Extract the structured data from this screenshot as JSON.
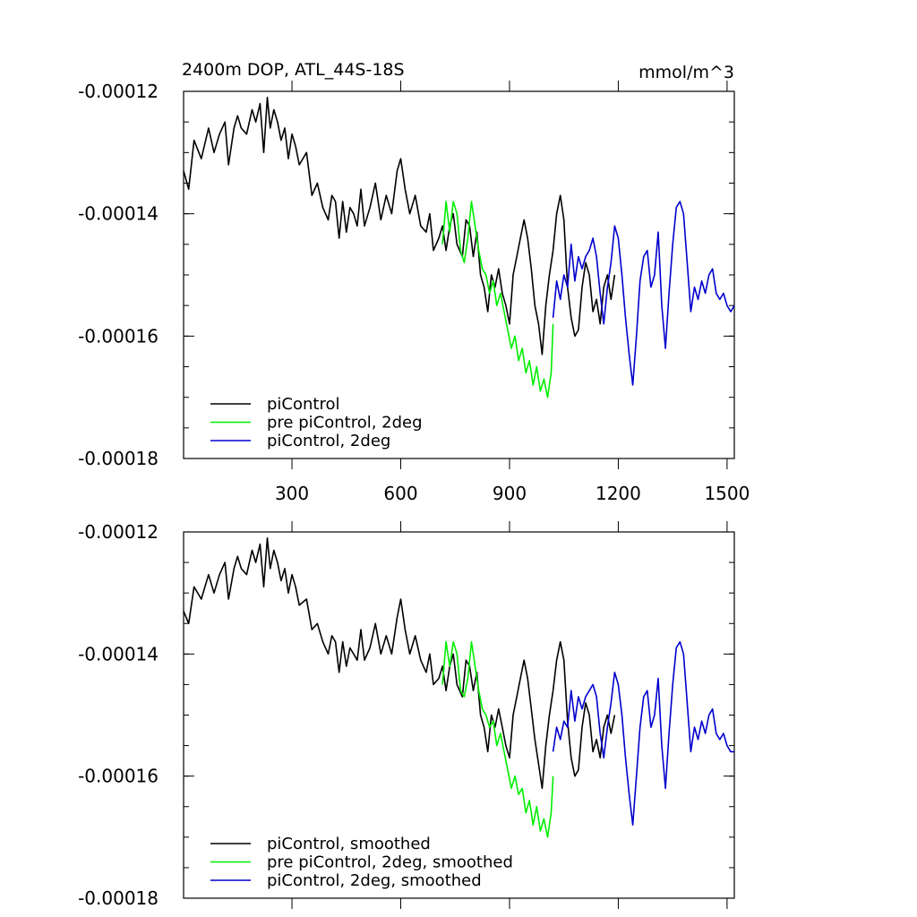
{
  "colors": {
    "piControl": "#000000",
    "pre_piControl_2deg": "#00ee00",
    "piControl_2deg": "#0000cc"
  },
  "chart_data": [
    {
      "type": "line",
      "title": "2400m DOP, ATL_44S-18S",
      "units": "mmol/m^3",
      "xlabel": "",
      "ylabel": "",
      "xlim": [
        1,
        1520
      ],
      "ylim": [
        -0.00018,
        -0.00012
      ],
      "y_ticks": [
        -0.00012,
        -0.00014,
        -0.00016,
        -0.00018
      ],
      "y_tick_labels": [
        "-0.00012",
        "-0.00014",
        "-0.00016",
        "-0.00018"
      ],
      "x_ticks": [
        300,
        600,
        900,
        1200,
        1500
      ],
      "x_tick_labels": [
        "300",
        "600",
        "900",
        "1200",
        "1500"
      ],
      "legend_position": "bottom-left",
      "series": [
        {
          "name": "piControl",
          "color": "#000000",
          "x": [
            1,
            15,
            30,
            50,
            70,
            85,
            100,
            115,
            125,
            140,
            150,
            160,
            175,
            190,
            200,
            212,
            222,
            232,
            240,
            250,
            260,
            270,
            280,
            290,
            300,
            310,
            320,
            340,
            355,
            370,
            385,
            400,
            410,
            420,
            430,
            440,
            450,
            460,
            470,
            480,
            490,
            500,
            515,
            530,
            545,
            560,
            575,
            590,
            600,
            612,
            625,
            640,
            655,
            670,
            680,
            690,
            705,
            715,
            725,
            735,
            745,
            755,
            770,
            780,
            790,
            800,
            810,
            820,
            830,
            840,
            850,
            860,
            870,
            880,
            890,
            900,
            910,
            920,
            930,
            940,
            950,
            960,
            970,
            980,
            990,
            1000,
            1010,
            1020,
            1030,
            1040,
            1050,
            1060,
            1070,
            1080,
            1090,
            1100,
            1110,
            1120,
            1130,
            1140,
            1150,
            1160,
            1170,
            1180,
            1190
          ],
          "values": [
            -0.000133,
            -0.000136,
            -0.000128,
            -0.000131,
            -0.000126,
            -0.00013,
            -0.000127,
            -0.000125,
            -0.000132,
            -0.000126,
            -0.000124,
            -0.000126,
            -0.000127,
            -0.000123,
            -0.000125,
            -0.000122,
            -0.00013,
            -0.000121,
            -0.000126,
            -0.000123,
            -0.000125,
            -0.000128,
            -0.000126,
            -0.000131,
            -0.000127,
            -0.000129,
            -0.000132,
            -0.00013,
            -0.000137,
            -0.000135,
            -0.000139,
            -0.000141,
            -0.000137,
            -0.000138,
            -0.000144,
            -0.000138,
            -0.000143,
            -0.000139,
            -0.00014,
            -0.000142,
            -0.000136,
            -0.000142,
            -0.000139,
            -0.000135,
            -0.000141,
            -0.000137,
            -0.00014,
            -0.000133,
            -0.000131,
            -0.000136,
            -0.00014,
            -0.000137,
            -0.000142,
            -0.000143,
            -0.00014,
            -0.000146,
            -0.000144,
            -0.000142,
            -0.000146,
            -0.000142,
            -0.00014,
            -0.000145,
            -0.000147,
            -0.000141,
            -0.000142,
            -0.000147,
            -0.000143,
            -0.00015,
            -0.000152,
            -0.000156,
            -0.00015,
            -0.000152,
            -0.000149,
            -0.000153,
            -0.000155,
            -0.000158,
            -0.00015,
            -0.000147,
            -0.000144,
            -0.000141,
            -0.000144,
            -0.000149,
            -0.000155,
            -0.000158,
            -0.000163,
            -0.000155,
            -0.00015,
            -0.000146,
            -0.00014,
            -0.000137,
            -0.000141,
            -0.000152,
            -0.000157,
            -0.00016,
            -0.000159,
            -0.000152,
            -0.000148,
            -0.00015,
            -0.000156,
            -0.000154,
            -0.000158,
            -0.000152,
            -0.00015,
            -0.000154,
            -0.00015
          ]
        },
        {
          "name": "pre piControl, 2deg",
          "color": "#00ee00",
          "x": [
            715,
            725,
            735,
            745,
            755,
            765,
            775,
            785,
            795,
            805,
            815,
            825,
            835,
            845,
            855,
            865,
            875,
            885,
            895,
            905,
            915,
            925,
            935,
            945,
            955,
            965,
            975,
            985,
            995,
            1005,
            1015,
            1020
          ],
          "values": [
            -0.000145,
            -0.000138,
            -0.000143,
            -0.000138,
            -0.00014,
            -0.000146,
            -0.000148,
            -0.000144,
            -0.000138,
            -0.000142,
            -0.000146,
            -0.000149,
            -0.00015,
            -0.000153,
            -0.000151,
            -0.000155,
            -0.000153,
            -0.000156,
            -0.000159,
            -0.000162,
            -0.00016,
            -0.000164,
            -0.000162,
            -0.000166,
            -0.000164,
            -0.000168,
            -0.000165,
            -0.000169,
            -0.000167,
            -0.00017,
            -0.000166,
            -0.000158
          ]
        },
        {
          "name": "piControl, 2deg",
          "color": "#0000cc",
          "x": [
            1020,
            1030,
            1040,
            1050,
            1060,
            1070,
            1080,
            1090,
            1100,
            1110,
            1120,
            1130,
            1140,
            1150,
            1160,
            1170,
            1180,
            1190,
            1200,
            1210,
            1220,
            1230,
            1240,
            1250,
            1260,
            1270,
            1280,
            1290,
            1300,
            1310,
            1320,
            1330,
            1340,
            1350,
            1360,
            1370,
            1380,
            1390,
            1400,
            1410,
            1420,
            1430,
            1440,
            1450,
            1460,
            1470,
            1480,
            1490,
            1500,
            1510,
            1520
          ],
          "values": [
            -0.000157,
            -0.000151,
            -0.000154,
            -0.00015,
            -0.000152,
            -0.000145,
            -0.000151,
            -0.000147,
            -0.000149,
            -0.000147,
            -0.000146,
            -0.000144,
            -0.000147,
            -0.000153,
            -0.000158,
            -0.000152,
            -0.000148,
            -0.000142,
            -0.000144,
            -0.00015,
            -0.000157,
            -0.000163,
            -0.000168,
            -0.00016,
            -0.000151,
            -0.000147,
            -0.000146,
            -0.000152,
            -0.00015,
            -0.000143,
            -0.000155,
            -0.000162,
            -0.000153,
            -0.000145,
            -0.000139,
            -0.000138,
            -0.00014,
            -0.000148,
            -0.000156,
            -0.000152,
            -0.000154,
            -0.000151,
            -0.000153,
            -0.00015,
            -0.000149,
            -0.000153,
            -0.000154,
            -0.000153,
            -0.000155,
            -0.000156,
            -0.000155
          ]
        }
      ]
    },
    {
      "type": "line",
      "title": "",
      "xlabel": "",
      "ylabel": "",
      "xlim": [
        1,
        1520
      ],
      "ylim": [
        -0.00018,
        -0.00012
      ],
      "y_ticks": [
        -0.00012,
        -0.00014,
        -0.00016,
        -0.00018
      ],
      "y_tick_labels": [
        "-0.00012",
        "-0.00014",
        "-0.00016",
        "-0.00018"
      ],
      "x_ticks": [
        300,
        600,
        900,
        1200,
        1500
      ],
      "x_tick_labels": [],
      "legend_position": "bottom-left",
      "series": [
        {
          "name": "piControl, smoothed",
          "color": "#000000",
          "x": [
            1,
            15,
            30,
            50,
            70,
            85,
            100,
            115,
            125,
            140,
            150,
            160,
            175,
            190,
            200,
            212,
            222,
            232,
            240,
            250,
            260,
            270,
            280,
            290,
            300,
            310,
            320,
            340,
            355,
            370,
            385,
            400,
            410,
            420,
            430,
            440,
            450,
            460,
            470,
            480,
            490,
            500,
            515,
            530,
            545,
            560,
            575,
            590,
            600,
            612,
            625,
            640,
            655,
            670,
            680,
            690,
            705,
            715,
            725,
            735,
            745,
            755,
            770,
            780,
            790,
            800,
            810,
            820,
            830,
            840,
            850,
            860,
            870,
            880,
            890,
            900,
            910,
            920,
            930,
            940,
            950,
            960,
            970,
            980,
            990,
            1000,
            1010,
            1020,
            1030,
            1040,
            1050,
            1060,
            1070,
            1080,
            1090,
            1100,
            1110,
            1120,
            1130,
            1140,
            1150,
            1160,
            1170,
            1180,
            1190
          ],
          "values": [
            -0.000133,
            -0.000135,
            -0.000129,
            -0.000131,
            -0.000127,
            -0.00013,
            -0.000127,
            -0.000125,
            -0.000131,
            -0.000126,
            -0.000124,
            -0.000126,
            -0.000127,
            -0.000123,
            -0.000125,
            -0.000122,
            -0.000129,
            -0.000121,
            -0.000126,
            -0.000123,
            -0.000125,
            -0.000128,
            -0.000126,
            -0.00013,
            -0.000127,
            -0.000129,
            -0.000132,
            -0.000131,
            -0.000136,
            -0.000135,
            -0.000138,
            -0.00014,
            -0.000137,
            -0.000138,
            -0.000143,
            -0.000138,
            -0.000142,
            -0.000139,
            -0.00014,
            -0.000141,
            -0.000136,
            -0.000141,
            -0.000139,
            -0.000135,
            -0.00014,
            -0.000137,
            -0.00014,
            -0.000134,
            -0.000131,
            -0.000136,
            -0.00014,
            -0.000137,
            -0.000141,
            -0.000143,
            -0.00014,
            -0.000145,
            -0.000144,
            -0.000142,
            -0.000146,
            -0.000142,
            -0.00014,
            -0.000145,
            -0.000147,
            -0.000141,
            -0.000142,
            -0.000146,
            -0.000143,
            -0.00015,
            -0.000152,
            -0.000156,
            -0.00015,
            -0.000152,
            -0.000149,
            -0.000152,
            -0.000155,
            -0.000157,
            -0.00015,
            -0.000147,
            -0.000144,
            -0.000141,
            -0.000144,
            -0.000149,
            -0.000154,
            -0.000158,
            -0.000162,
            -0.000155,
            -0.00015,
            -0.000146,
            -0.000141,
            -0.000138,
            -0.000141,
            -0.000151,
            -0.000157,
            -0.00016,
            -0.000159,
            -0.000152,
            -0.000148,
            -0.00015,
            -0.000156,
            -0.000154,
            -0.000157,
            -0.000152,
            -0.00015,
            -0.000153,
            -0.00015
          ]
        },
        {
          "name": "pre piControl, 2deg, smoothed",
          "color": "#00ee00",
          "x": [
            715,
            725,
            735,
            745,
            755,
            765,
            775,
            785,
            795,
            805,
            815,
            825,
            835,
            845,
            855,
            865,
            875,
            885,
            895,
            905,
            915,
            925,
            935,
            945,
            955,
            965,
            975,
            985,
            995,
            1005,
            1015,
            1020
          ],
          "values": [
            -0.000145,
            -0.000138,
            -0.000142,
            -0.000138,
            -0.00014,
            -0.000146,
            -0.000147,
            -0.000144,
            -0.000138,
            -0.000142,
            -0.000146,
            -0.000149,
            -0.00015,
            -0.000152,
            -0.000151,
            -0.000155,
            -0.000153,
            -0.000156,
            -0.000159,
            -0.000162,
            -0.00016,
            -0.000163,
            -0.000162,
            -0.000166,
            -0.000164,
            -0.000168,
            -0.000165,
            -0.000169,
            -0.000167,
            -0.00017,
            -0.000166,
            -0.00016
          ]
        },
        {
          "name": "piControl, 2deg, smoothed",
          "color": "#0000cc",
          "x": [
            1020,
            1030,
            1040,
            1050,
            1060,
            1070,
            1080,
            1090,
            1100,
            1110,
            1120,
            1130,
            1140,
            1150,
            1160,
            1170,
            1180,
            1190,
            1200,
            1210,
            1220,
            1230,
            1240,
            1250,
            1260,
            1270,
            1280,
            1290,
            1300,
            1310,
            1320,
            1330,
            1340,
            1350,
            1360,
            1370,
            1380,
            1390,
            1400,
            1410,
            1420,
            1430,
            1440,
            1450,
            1460,
            1470,
            1480,
            1490,
            1500,
            1510,
            1520
          ],
          "values": [
            -0.000156,
            -0.000152,
            -0.000154,
            -0.000151,
            -0.000152,
            -0.000146,
            -0.000151,
            -0.000147,
            -0.000149,
            -0.000147,
            -0.000146,
            -0.000145,
            -0.000147,
            -0.000153,
            -0.000157,
            -0.000152,
            -0.000148,
            -0.000143,
            -0.000145,
            -0.00015,
            -0.000157,
            -0.000163,
            -0.000168,
            -0.00016,
            -0.000152,
            -0.000147,
            -0.000146,
            -0.000152,
            -0.00015,
            -0.000144,
            -0.000155,
            -0.000162,
            -0.000153,
            -0.000145,
            -0.000139,
            -0.000138,
            -0.00014,
            -0.000148,
            -0.000156,
            -0.000152,
            -0.000154,
            -0.000151,
            -0.000153,
            -0.00015,
            -0.000149,
            -0.000153,
            -0.000154,
            -0.000153,
            -0.000155,
            -0.000156,
            -0.000156
          ]
        }
      ]
    }
  ]
}
